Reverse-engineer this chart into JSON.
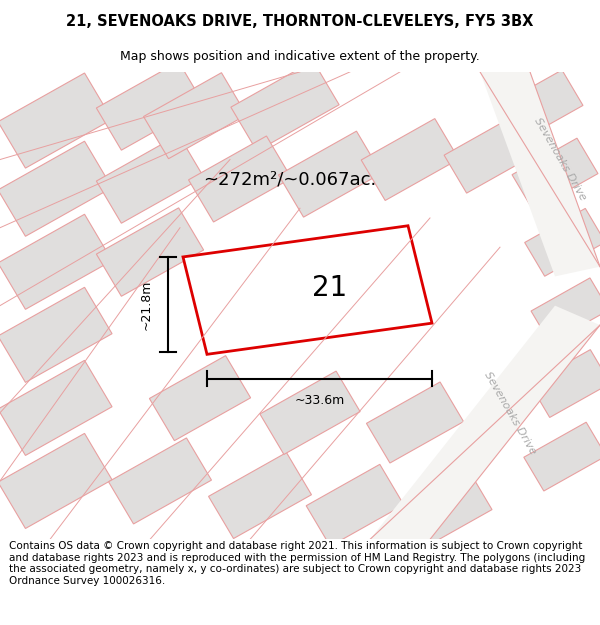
{
  "title_line1": "21, SEVENOAKS DRIVE, THORNTON-CLEVELEYS, FY5 3BX",
  "title_line2": "Map shows position and indicative extent of the property.",
  "area_text": "~272m²/~0.067ac.",
  "plot_label": "21",
  "dim_width": "~33.6m",
  "dim_height": "~21.8m",
  "footer_text": "Contains OS data © Crown copyright and database right 2021. This information is subject to Crown copyright and database rights 2023 and is reproduced with the permission of HM Land Registry. The polygons (including the associated geometry, namely x, y co-ordinates) are subject to Crown copyright and database rights 2023 Ordnance Survey 100026316.",
  "road_label_1": "Sevenoaks Drive",
  "road_label_2": "Sevenoaks Drive",
  "map_bg": "#f0efee",
  "building_fill": "#e0dedd",
  "building_stroke": "#e8a0a0",
  "main_plot_stroke": "#dd0000",
  "title_fontsize": 10.5,
  "subtitle_fontsize": 9.0,
  "footer_fontsize": 7.5
}
